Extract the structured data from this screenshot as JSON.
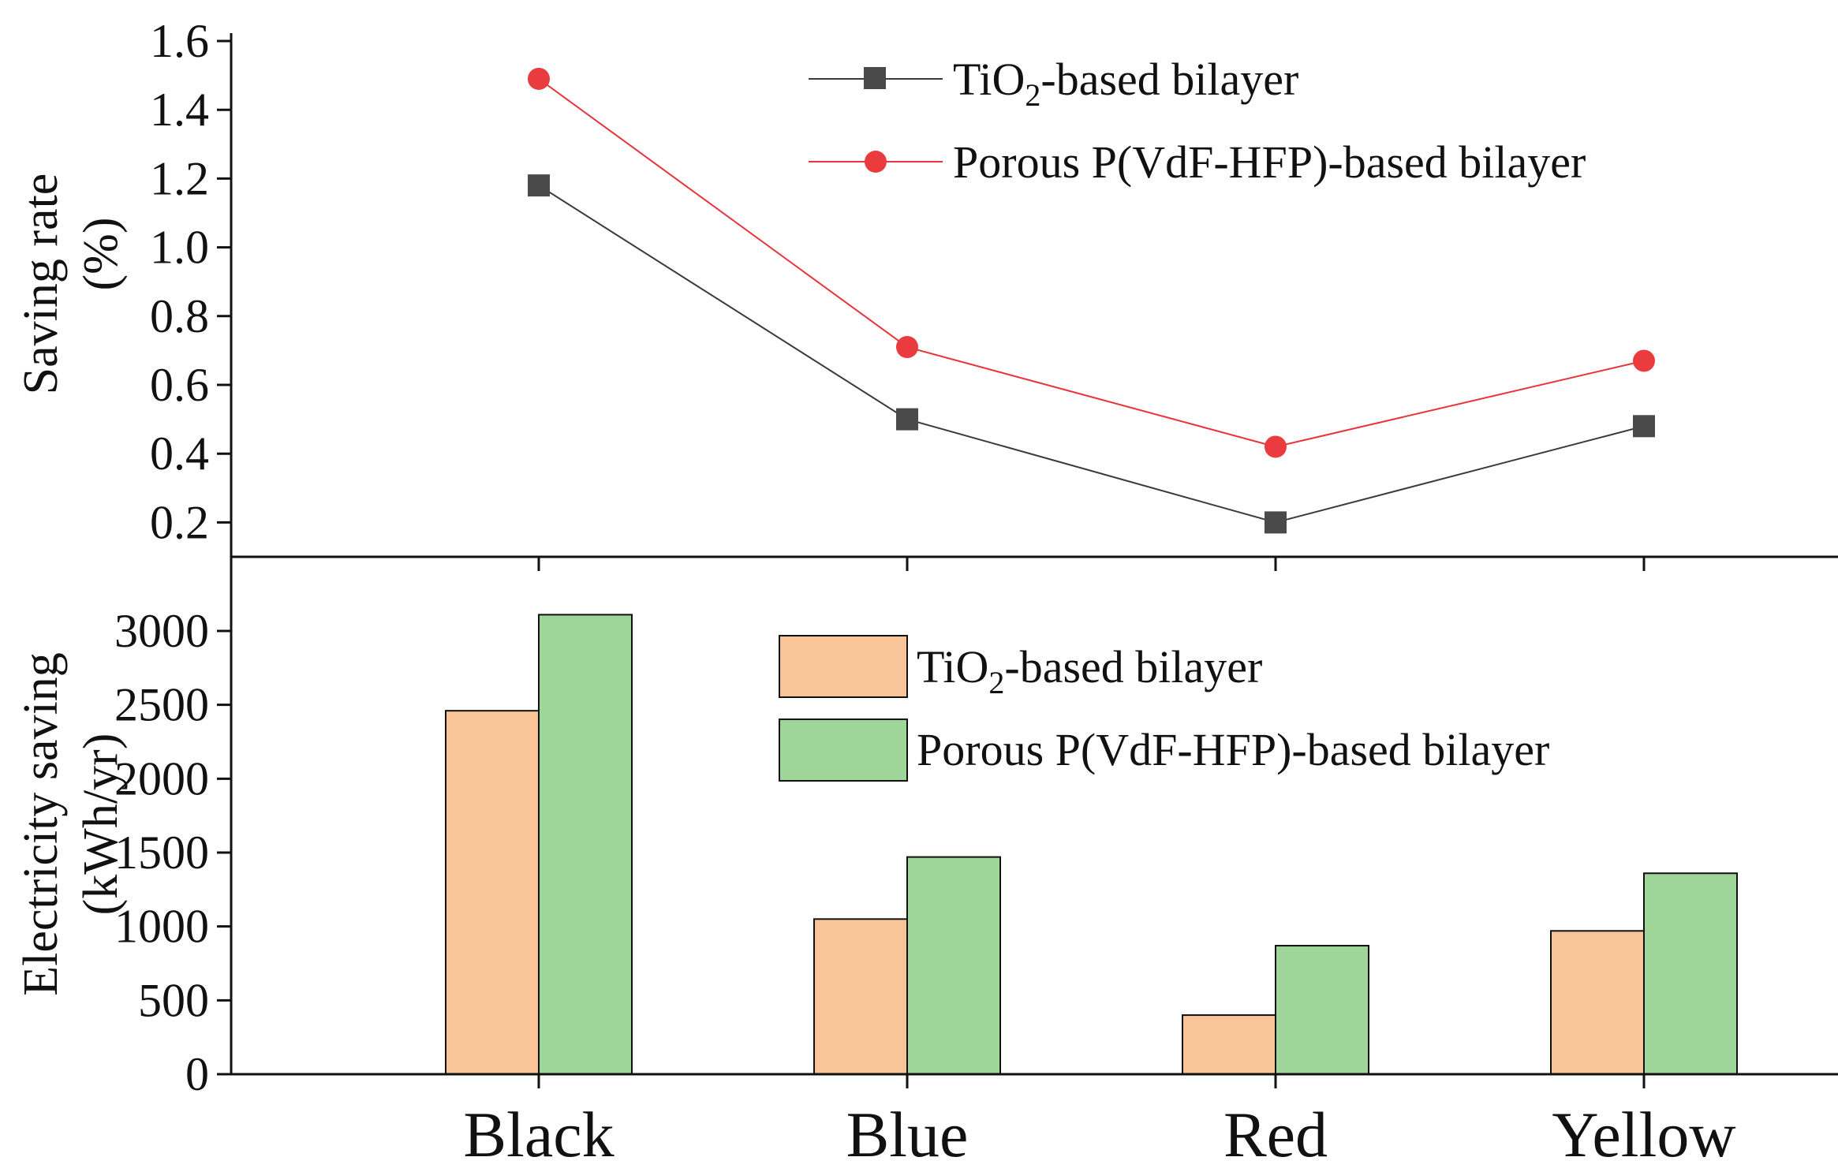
{
  "colors": {
    "tio2_line": "#3a3a3a",
    "tio2_marker": "#4a4a4a",
    "porous_line": "#e8343a",
    "porous_marker": "#ea3b3e",
    "tio2_bar": "#f9c598",
    "porous_bar": "#9ed598",
    "axis": "#111111"
  },
  "icons": {
    "tio2_marker": "square-marker",
    "porous_marker": "circle-marker"
  },
  "legend_placement": {
    "top_panel": "top-right",
    "bottom_panel": "top-right"
  },
  "chart_data": [
    {
      "type": "line",
      "panel": "top",
      "categories": [
        "Black",
        "Blue",
        "Red",
        "Yellow"
      ],
      "ylabel_line1": "Saving rate",
      "ylabel_line2": "(%)",
      "ylim": [
        0.1,
        1.6
      ],
      "yticks": [
        "0.2",
        "0.4",
        "0.6",
        "0.8",
        "1.0",
        "1.2",
        "1.4",
        "1.6"
      ],
      "grid": false,
      "series": [
        {
          "key": "tio2",
          "name_main": "TiO",
          "name_sub": "2",
          "name_rest": "-based bilayer",
          "values": [
            1.18,
            0.5,
            0.2,
            0.48
          ]
        },
        {
          "key": "porous",
          "name_main": "Porous P(VdF-HFP)-based bilayer",
          "values": [
            1.49,
            0.71,
            0.42,
            0.67
          ]
        }
      ]
    },
    {
      "type": "bar",
      "panel": "bottom",
      "categories": [
        "Black",
        "Blue",
        "Red",
        "Yellow"
      ],
      "ylabel_line1": "Electricity saving",
      "ylabel_line2": "(kWh/yr)",
      "ylim": [
        0,
        3200
      ],
      "yticks": [
        "0",
        "500",
        "1000",
        "1500",
        "2000",
        "2500",
        "3000"
      ],
      "grid": false,
      "series": [
        {
          "key": "tio2",
          "name_main": "TiO",
          "name_sub": "2",
          "name_rest": "-based bilayer",
          "values": [
            2460,
            1050,
            400,
            970
          ]
        },
        {
          "key": "porous",
          "name_main": "Porous P(VdF-HFP)-based bilayer",
          "values": [
            3110,
            1470,
            870,
            1360
          ]
        }
      ]
    }
  ]
}
